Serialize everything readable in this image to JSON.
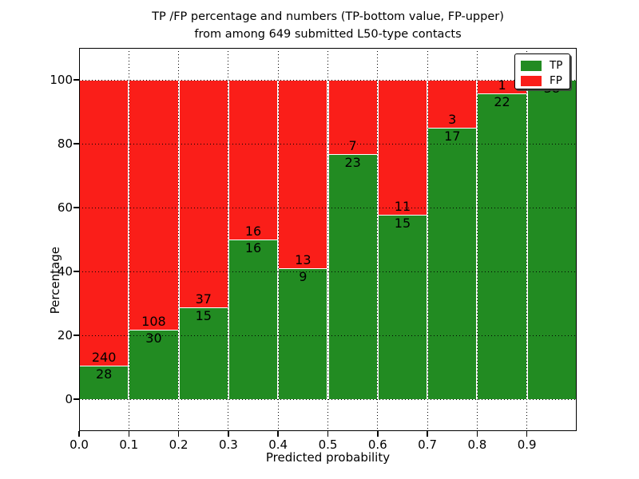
{
  "figure": {
    "title_line1": "TP /FP percentage and numbers (TP-bottom value, FP-upper)",
    "title_line2": "from among 649 submitted L50-type contacts",
    "background": "#ffffff"
  },
  "chart_data": {
    "type": "bar",
    "stacked": true,
    "normalized": "each bin scaled to 100%, bar labels show raw counts",
    "title": "TP /FP percentage and numbers (TP-bottom value, FP-upper) from among 649 submitted L50-type contacts",
    "xlabel": "Predicted probability",
    "ylabel": "Percentage",
    "total_contacts": 649,
    "bin_width": 0.1,
    "categories": [
      "0.0",
      "0.1",
      "0.2",
      "0.3",
      "0.4",
      "0.5",
      "0.6",
      "0.7",
      "0.8",
      "0.9"
    ],
    "y_ticks": [
      0,
      20,
      40,
      60,
      80,
      100
    ],
    "ylim": [
      -10,
      110
    ],
    "xlim": [
      0.0,
      1.0
    ],
    "grid": "dotted, drawn above bars",
    "legend_position": "upper right",
    "series": [
      {
        "name": "TP",
        "color": "#228b22",
        "counts": [
          28,
          30,
          15,
          16,
          9,
          23,
          15,
          17,
          22,
          38
        ]
      },
      {
        "name": "FP",
        "color": "#fa1e19",
        "counts": [
          240,
          108,
          37,
          16,
          13,
          7,
          11,
          3,
          1,
          0
        ]
      }
    ]
  },
  "legend": {
    "items": [
      {
        "label": "TP",
        "color": "#228b22"
      },
      {
        "label": "FP",
        "color": "#fa1e19"
      }
    ]
  },
  "colors": {
    "tp_green": "#228b22",
    "fp_red": "#fa1e19",
    "bar_edge": "#ffffff",
    "axes": "#000000",
    "text": "#000000"
  }
}
